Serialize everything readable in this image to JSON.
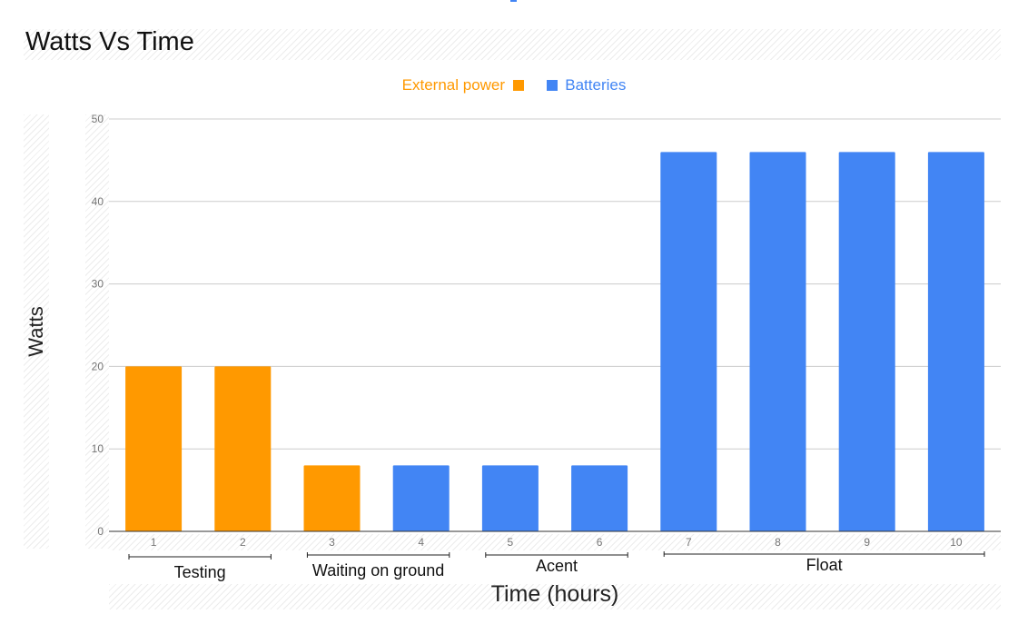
{
  "title": "Watts Vs Time",
  "legend": [
    {
      "name": "External power",
      "color": "#ff9900"
    },
    {
      "name": "Batteries",
      "color": "#4285f4"
    }
  ],
  "colors": {
    "external": "#ff9900",
    "batteries": "#4285f4",
    "grid": "#cccccc",
    "axis": "#333333"
  },
  "chart_data": {
    "type": "bar",
    "title": "Watts Vs Time",
    "xlabel": "Time (hours)",
    "ylabel": "Watts",
    "ylim": [
      0,
      50
    ],
    "yticks": [
      0,
      10,
      20,
      30,
      40,
      50
    ],
    "grid": true,
    "legend_position": "top",
    "categories": [
      "1",
      "2",
      "3",
      "4",
      "5",
      "6",
      "7",
      "8",
      "9",
      "10"
    ],
    "series": [
      {
        "name": "External power",
        "values": [
          20,
          20,
          8,
          null,
          null,
          null,
          null,
          null,
          null,
          null
        ]
      },
      {
        "name": "Batteries",
        "values": [
          null,
          null,
          null,
          8,
          8,
          8,
          46,
          46,
          46,
          46
        ]
      }
    ],
    "phases": [
      {
        "label": "Testing",
        "from": "1",
        "to": "2"
      },
      {
        "label": "Waiting on ground",
        "from": "3",
        "to": "4"
      },
      {
        "label": "Acent",
        "from": "5",
        "to": "6"
      },
      {
        "label": "Float",
        "from": "7",
        "to": "10"
      }
    ]
  }
}
